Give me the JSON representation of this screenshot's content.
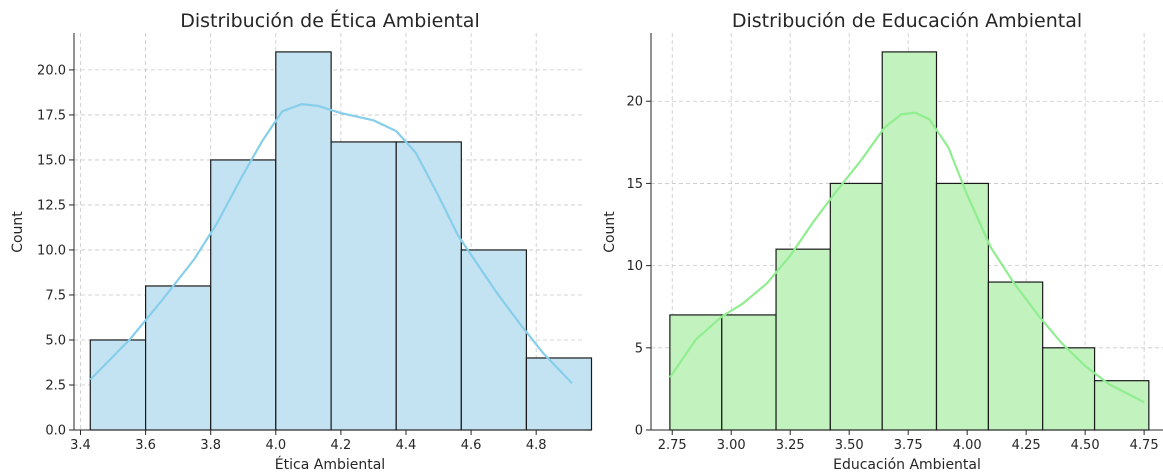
{
  "chart_data": [
    {
      "type": "bar",
      "title": "Distribución de Ética Ambiental",
      "xlabel": "Ética Ambiental",
      "ylabel": "Count",
      "bar_color": "#c4e3f2",
      "kde_color": "#87ceeb",
      "xlim": [
        3.38,
        4.95
      ],
      "ylim": [
        0,
        22.05
      ],
      "xticks": [
        3.4,
        3.6,
        3.8,
        4.0,
        4.2,
        4.4,
        4.6,
        4.8
      ],
      "xtick_labels": [
        "3.4",
        "3.6",
        "3.8",
        "4.0",
        "4.2",
        "4.4",
        "4.6",
        "4.8"
      ],
      "yticks": [
        0,
        2.5,
        5,
        7.5,
        10,
        12.5,
        15,
        17.5,
        20
      ],
      "ytick_labels": [
        "0.0",
        "2.5",
        "5.0",
        "7.5",
        "10.0",
        "12.5",
        "15.0",
        "17.5",
        "20.0"
      ],
      "bins": [
        {
          "x0": 3.43,
          "x1": 3.6,
          "count": 5
        },
        {
          "x0": 3.6,
          "x1": 3.8,
          "count": 8
        },
        {
          "x0": 3.8,
          "x1": 4.0,
          "count": 15
        },
        {
          "x0": 4.0,
          "x1": 4.17,
          "count": 21
        },
        {
          "x0": 4.17,
          "x1": 4.37,
          "count": 16
        },
        {
          "x0": 4.37,
          "x1": 4.57,
          "count": 16
        },
        {
          "x0": 4.57,
          "x1": 4.77,
          "count": 10
        },
        {
          "x0": 4.77,
          "x1": 4.97,
          "count": 4
        }
      ],
      "kde": {
        "x": [
          3.43,
          3.55,
          3.65,
          3.75,
          3.82,
          3.9,
          3.96,
          4.02,
          4.08,
          4.13,
          4.2,
          4.3,
          4.37,
          4.43,
          4.5,
          4.56,
          4.62,
          4.68,
          4.75,
          4.82,
          4.91
        ],
        "y": [
          2.8,
          5.0,
          7.2,
          9.5,
          11.5,
          14.2,
          16.1,
          17.7,
          18.1,
          18.0,
          17.6,
          17.2,
          16.6,
          15.4,
          13.0,
          10.8,
          9.2,
          7.6,
          5.9,
          4.3,
          2.6
        ]
      }
    },
    {
      "type": "bar",
      "title": "Distribución de Educación Ambiental",
      "xlabel": "Educación Ambiental",
      "ylabel": "Count",
      "bar_color": "#c2f2be",
      "kde_color": "#90ee90",
      "xlim": [
        2.66,
        4.83
      ],
      "ylim": [
        0,
        24.15
      ],
      "xticks": [
        2.75,
        3.0,
        3.25,
        3.5,
        3.75,
        4.0,
        4.25,
        4.5,
        4.75
      ],
      "xtick_labels": [
        "2.75",
        "3.00",
        "3.25",
        "3.50",
        "3.75",
        "4.00",
        "4.25",
        "4.50",
        "4.75"
      ],
      "yticks": [
        0,
        5,
        10,
        15,
        20
      ],
      "ytick_labels": [
        "0",
        "5",
        "10",
        "15",
        "20"
      ],
      "bins": [
        {
          "x0": 2.74,
          "x1": 2.96,
          "count": 7
        },
        {
          "x0": 2.96,
          "x1": 3.19,
          "count": 7
        },
        {
          "x0": 3.19,
          "x1": 3.42,
          "count": 11
        },
        {
          "x0": 3.42,
          "x1": 3.64,
          "count": 15
        },
        {
          "x0": 3.64,
          "x1": 3.87,
          "count": 23
        },
        {
          "x0": 3.87,
          "x1": 4.09,
          "count": 15
        },
        {
          "x0": 4.09,
          "x1": 4.32,
          "count": 9
        },
        {
          "x0": 4.32,
          "x1": 4.54,
          "count": 5
        },
        {
          "x0": 4.54,
          "x1": 4.77,
          "count": 3
        }
      ],
      "kde": {
        "x": [
          2.74,
          2.85,
          2.96,
          3.05,
          3.15,
          3.25,
          3.35,
          3.45,
          3.55,
          3.65,
          3.72,
          3.78,
          3.84,
          3.92,
          4.0,
          4.1,
          4.2,
          4.3,
          4.4,
          4.5,
          4.6,
          4.75
        ],
        "y": [
          3.2,
          5.5,
          6.9,
          7.7,
          8.9,
          10.6,
          12.7,
          14.6,
          16.4,
          18.4,
          19.2,
          19.3,
          18.9,
          17.2,
          14.3,
          11.1,
          8.9,
          7.0,
          5.3,
          3.9,
          2.8,
          1.7
        ]
      }
    }
  ]
}
